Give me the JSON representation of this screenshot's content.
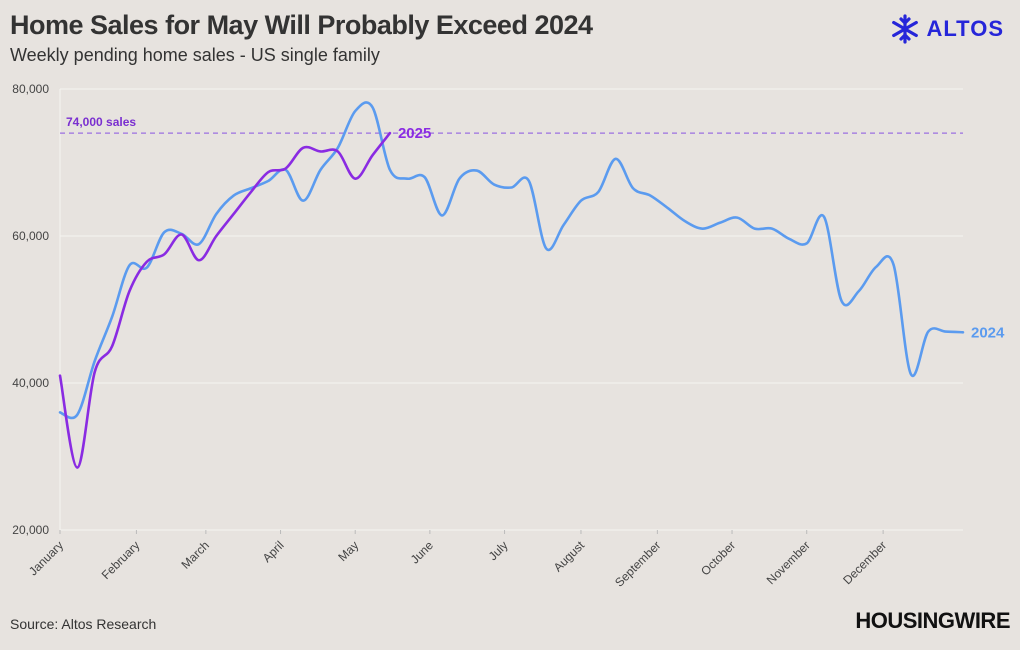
{
  "header": {
    "title": "Home Sales for May Will Probably Exceed 2024",
    "subtitle": "Weekly pending home sales - US single family"
  },
  "brand": {
    "logo_text": "ALTOS",
    "logo_color": "#2626d9",
    "publisher": "HOUSINGWIRE"
  },
  "footer": {
    "source": "Source: Altos Research"
  },
  "chart_data": {
    "type": "line",
    "ylim": [
      20000,
      80000
    ],
    "y_ticks": [
      20000,
      40000,
      60000,
      80000
    ],
    "y_tick_labels": [
      "20,000",
      "40,000",
      "60,000",
      "80,000"
    ],
    "x_unit": "week of year",
    "xlim": [
      1,
      53
    ],
    "x_ticks": [
      1,
      5.4,
      9.4,
      13.7,
      18,
      22.3,
      26.6,
      31,
      35.4,
      39.7,
      44,
      48.4
    ],
    "x_tick_labels": [
      "January",
      "February",
      "March",
      "April",
      "May",
      "June",
      "July",
      "August",
      "September",
      "October",
      "November",
      "December"
    ],
    "grid": "horizontal",
    "reference_line": {
      "value": 74000,
      "label": "74,000 sales",
      "color": "#9b6fe0"
    },
    "series": [
      {
        "name": "2024",
        "color": "#5b9bef",
        "x": [
          1,
          2,
          3,
          4,
          5,
          6,
          7,
          8,
          9,
          10,
          11,
          12,
          13,
          14,
          15,
          16,
          17,
          18,
          19,
          20,
          21,
          22,
          23,
          24,
          25,
          26,
          27,
          28,
          29,
          30,
          31,
          32,
          33,
          34,
          35,
          36,
          37,
          38,
          39,
          40,
          41,
          42,
          43,
          44,
          45,
          46,
          47,
          48,
          49,
          50,
          51,
          52,
          53
        ],
        "y": [
          36000,
          35700,
          43000,
          49000,
          56000,
          55700,
          60500,
          60300,
          58900,
          63000,
          65500,
          66500,
          67500,
          69000,
          64800,
          69000,
          72000,
          77000,
          77500,
          69000,
          67800,
          68000,
          62800,
          67800,
          68900,
          67000,
          66600,
          67500,
          58300,
          61500,
          64800,
          66000,
          70500,
          66500,
          65500,
          63800,
          62000,
          61000,
          61800,
          62500,
          61000,
          61000,
          59600,
          59000,
          62600,
          51200,
          52500,
          55800,
          56100,
          41200,
          47000,
          47000,
          46900
        ]
      },
      {
        "name": "2025",
        "color": "#8a2be2",
        "x": [
          1,
          2,
          3,
          4,
          5,
          6,
          7,
          8,
          9,
          10,
          11,
          12,
          13,
          14,
          15,
          16,
          17,
          18,
          19,
          20
        ],
        "y": [
          41000,
          28500,
          41500,
          45000,
          52500,
          56500,
          57500,
          60200,
          56700,
          60000,
          63000,
          66000,
          68700,
          69200,
          72000,
          71500,
          71500,
          67800,
          71000,
          74000
        ]
      }
    ]
  }
}
